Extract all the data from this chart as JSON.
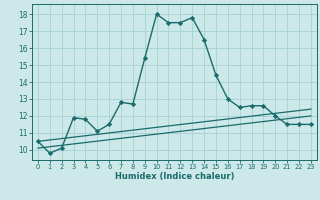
{
  "xlabel": "Humidex (Indice chaleur)",
  "bg_color": "#cce8e8",
  "grid_color": "#aad4d4",
  "line_color": "#1a6b6b",
  "x_ticks": [
    0,
    1,
    2,
    3,
    4,
    5,
    6,
    7,
    8,
    9,
    10,
    11,
    12,
    13,
    14,
    15,
    16,
    17,
    18,
    19,
    20,
    21,
    22,
    23
  ],
  "y_ticks": [
    10,
    11,
    12,
    13,
    14,
    15,
    16,
    17,
    18
  ],
  "ylim": [
    9.4,
    18.6
  ],
  "xlim": [
    -0.5,
    23.5
  ],
  "main_x": [
    0,
    1,
    2,
    3,
    4,
    5,
    6,
    7,
    8,
    9,
    10,
    11,
    12,
    13,
    14,
    15,
    16,
    17,
    18,
    19,
    20,
    21,
    22,
    23
  ],
  "main_y": [
    10.5,
    9.8,
    10.1,
    11.9,
    11.8,
    11.1,
    11.5,
    12.8,
    12.7,
    15.4,
    18.0,
    17.5,
    17.5,
    17.8,
    16.5,
    14.4,
    13.0,
    12.5,
    12.6,
    12.6,
    12.0,
    11.5,
    11.5,
    11.5
  ],
  "line2_x": [
    0,
    23
  ],
  "line2_y": [
    10.5,
    12.4
  ],
  "line3_x": [
    0,
    23
  ],
  "line3_y": [
    10.1,
    12.0
  ]
}
